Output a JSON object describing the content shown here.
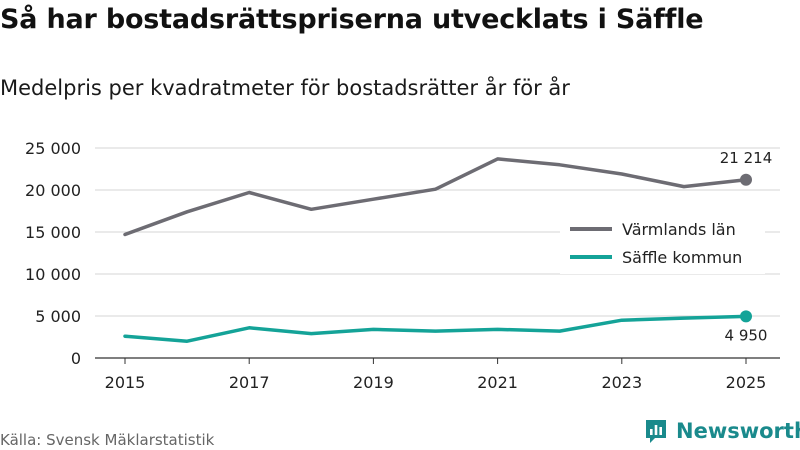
{
  "title": "Så har bostadsrättspriserna utvecklats i Säffle",
  "subtitle": "Medelpris per kvadratmeter för bostadsrätter år för år",
  "source": "Källa: Svensk Mäklarstatistik",
  "brand": {
    "name": "Newsworthy",
    "icon": "bar-chart-logo-icon",
    "color": "#1a8a8c"
  },
  "chart_data": {
    "type": "line",
    "title": "Så har bostadsrättspriserna utvecklats i Säffle",
    "subtitle": "Medelpris per kvadratmeter för bostadsrätter år för år",
    "xlabel": "",
    "ylabel": "",
    "x": [
      2015,
      2016,
      2017,
      2018,
      2019,
      2020,
      2021,
      2022,
      2023,
      2024,
      2025
    ],
    "xticks": [
      "2015",
      "2017",
      "2019",
      "2021",
      "2023",
      "2025"
    ],
    "xlim": [
      2014.8,
      2025.5
    ],
    "ylim": [
      0,
      25000
    ],
    "yticks": [
      "0",
      "5 000",
      "10 000",
      "15 000",
      "20 000",
      "25 000"
    ],
    "grid": true,
    "legend_position": "right",
    "series": [
      {
        "name": "Värmlands län",
        "color": "#6d6c73",
        "values": [
          14700,
          17400,
          19700,
          17700,
          18900,
          20100,
          23700,
          23000,
          21900,
          20400,
          21214
        ],
        "end_label": "21 214"
      },
      {
        "name": "Säffle kommun",
        "color": "#14a398",
        "values": [
          2600,
          2000,
          3600,
          2900,
          3400,
          3200,
          3400,
          3200,
          4500,
          4750,
          4950
        ],
        "end_label": "4 950"
      }
    ]
  }
}
